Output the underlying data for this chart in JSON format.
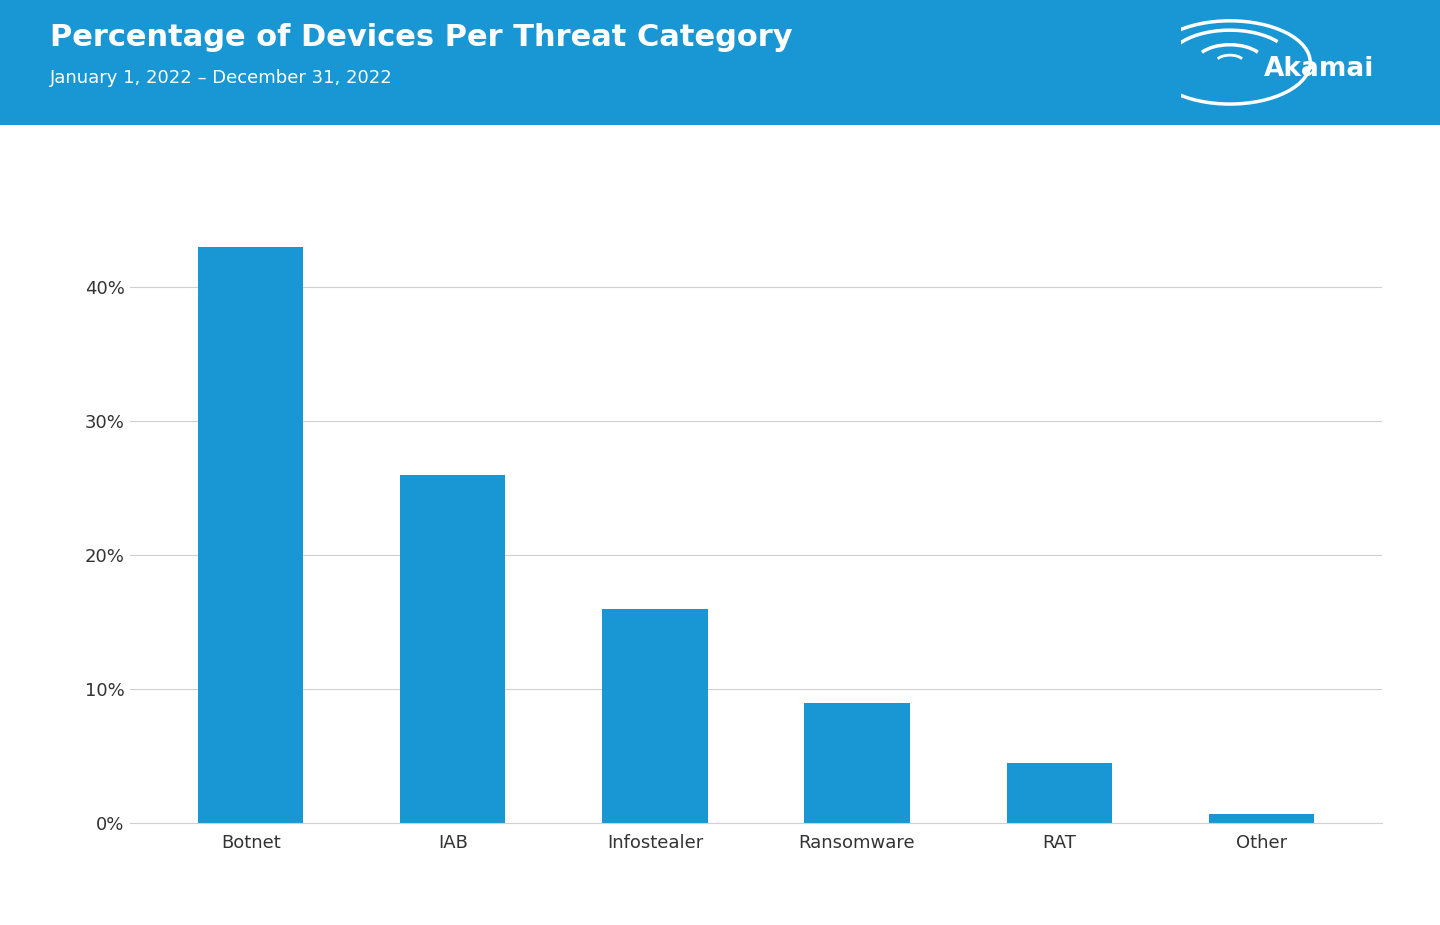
{
  "title": "Percentage of Devices Per Threat Category",
  "subtitle": "January 1, 2022 – December 31, 2022",
  "categories": [
    "Botnet",
    "IAB",
    "Infostealer",
    "Ransomware",
    "RAT",
    "Other"
  ],
  "values": [
    43.0,
    26.0,
    16.0,
    9.0,
    4.5,
    0.7
  ],
  "bar_color": "#1897d4",
  "header_bg_color": "#1897d4",
  "chart_bg_color": "#ffffff",
  "title_color": "#ffffff",
  "subtitle_color": "#ffffff",
  "tick_label_color": "#333333",
  "grid_color": "#d0d0d0",
  "ylim": [
    0,
    50
  ],
  "yticks": [
    0,
    10,
    20,
    30,
    40
  ],
  "ytick_labels": [
    "0%",
    "10%",
    "20%",
    "30%",
    "40%"
  ],
  "title_fontsize": 22,
  "subtitle_fontsize": 13,
  "tick_fontsize": 13,
  "xtick_fontsize": 13
}
